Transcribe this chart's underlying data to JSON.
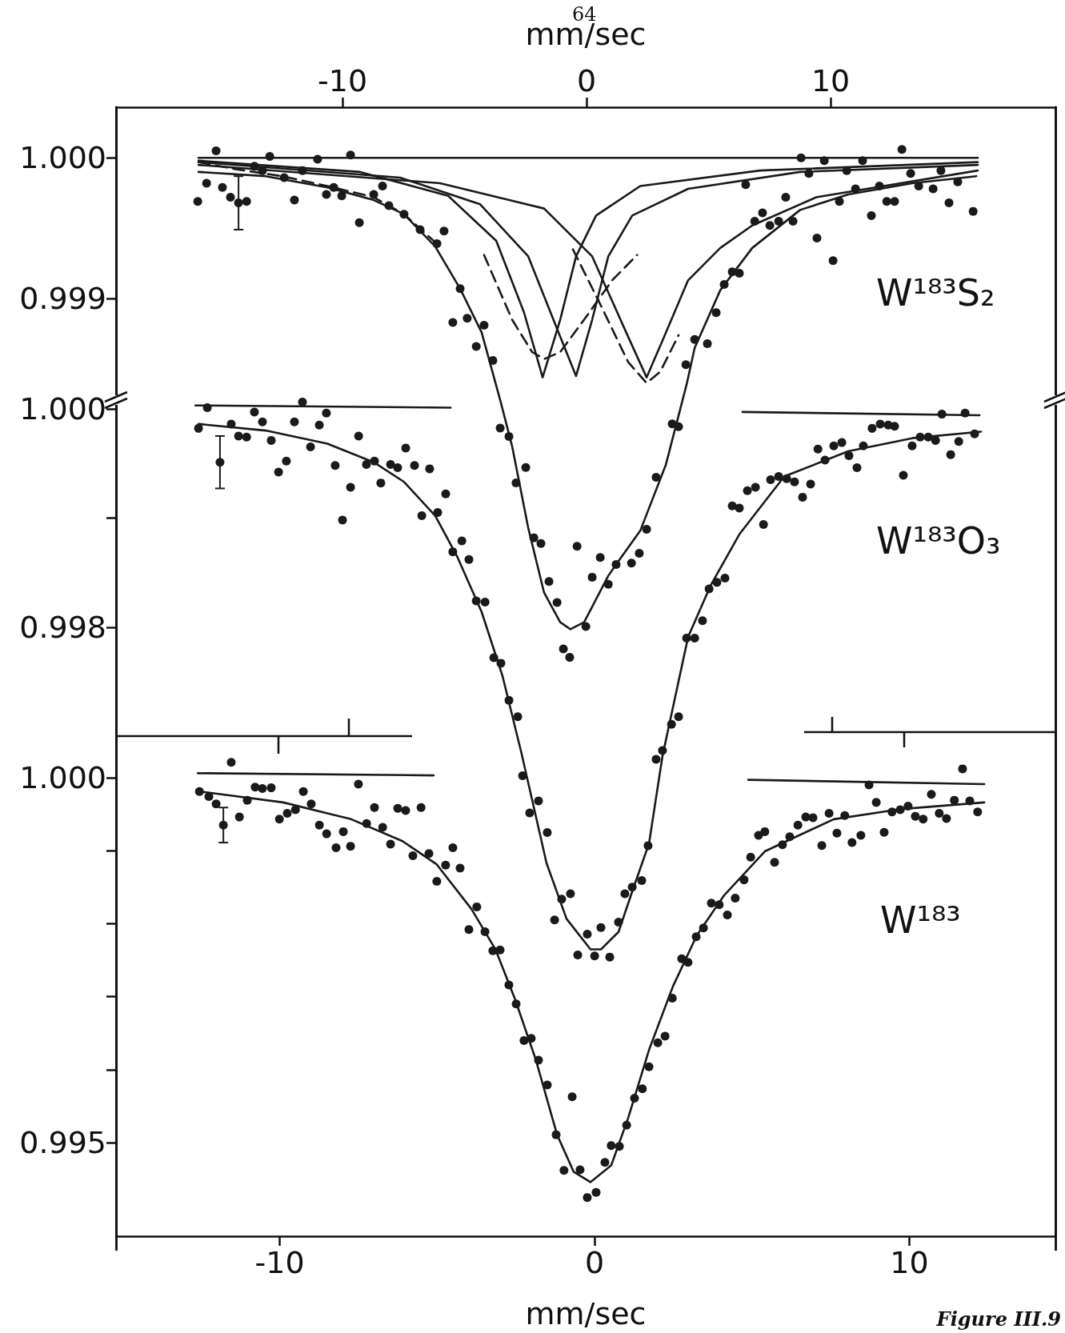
{
  "chart_data": [
    {
      "type": "scatter",
      "title": "W¹⁸³S₂",
      "xlabel": "mm/sec",
      "xlim": [
        -19.28,
        19.21
      ],
      "xticks": [
        -10,
        0,
        10
      ],
      "ylim": [
        0.99224,
        1.00036
      ],
      "yticks": [
        {
          "value": 1,
          "label": "1.000"
        },
        {
          "value": 0.999,
          "label": "0.999"
        }
      ],
      "grid": false,
      "annotations": [
        "64"
      ],
      "series": [
        {
          "type": "line",
          "line_style": "solid",
          "marker": "none",
          "color": "#1a1a1a",
          "x": [
            -15.9,
            16.03
          ],
          "values": [
            1.0,
            1.0
          ]
        },
        {
          "type": "line",
          "line_style": "solid",
          "marker": "none",
          "color": "#1a1a1a",
          "x": [
            -15.9,
            -9.28,
            -5.67,
            -3.7,
            -2.56,
            -1.8,
            -1.08,
            -0.43,
            0.39,
            2.2,
            7.11,
            16.03
          ],
          "values": [
            0.99998,
            0.9999,
            0.99973,
            0.99941,
            0.9989,
            0.99844,
            0.99885,
            0.9993,
            0.99959,
            0.9998,
            0.99991,
            0.99997
          ]
        },
        {
          "type": "line",
          "line_style": "solid",
          "marker": "none",
          "color": "#1a1a1a",
          "x": [
            -15.9,
            -7.64,
            -4.36,
            -2.39,
            -1.08,
            -0.43,
            0.23,
            0.89,
            1.87,
            4.16,
            8.75,
            16.03
          ],
          "values": [
            0.99997,
            0.99986,
            0.99967,
            0.9993,
            0.99873,
            0.99845,
            0.99885,
            0.9993,
            0.99959,
            0.99978,
            0.9999,
            0.99995
          ]
        },
        {
          "type": "line",
          "line_style": "solid",
          "marker": "none",
          "color": "#1a1a1a",
          "x": [
            -15.9,
            -6.0,
            -1.74,
            0.23,
            1.7,
            2.46,
            3.18,
            4.16,
            5.48,
            6.79,
            9.41,
            16.03
          ],
          "values": [
            0.99995,
            0.99982,
            0.99964,
            0.9993,
            0.99873,
            0.99844,
            0.99873,
            0.99913,
            0.99936,
            0.99952,
            0.99972,
            0.99991
          ]
        },
        {
          "type": "line",
          "line_style": "dashed",
          "marker": "none",
          "color": "#1a1a1a",
          "x": [
            -4.2,
            -3.05,
            -2.23,
            -1.74,
            -1.08,
            -0.1,
            1.05,
            2.07
          ],
          "values": [
            0.99931,
            0.99885,
            0.99862,
            0.99857,
            0.99862,
            0.99885,
            0.99913,
            0.99931
          ]
        },
        {
          "type": "line",
          "line_style": "dashed",
          "marker": "none",
          "color": "#1a1a1a",
          "x": [
            -0.56,
            0.56,
            1.7,
            2.46,
            3.02,
            3.77
          ],
          "values": [
            0.99935,
            0.99896,
            0.99855,
            0.9984,
            0.99848,
            0.99874
          ]
        },
        {
          "type": "line",
          "line_style": "dashed",
          "marker": "none",
          "color": "#1a1a1a",
          "x": [
            -15.9,
            -14.39,
            -12.49,
            -10.62,
            -8.72,
            -7.48,
            -6.2
          ],
          "values": [
            0.99997,
            0.99992,
            0.99987,
            0.9998,
            0.99972,
            0.9996,
            0.9994
          ]
        },
        {
          "type": "line",
          "line_style": "solid",
          "marker": "none",
          "color": "#1a1a1a",
          "x": [
            -15.9,
            -13.15,
            -10.62,
            -8.72,
            -7.48,
            -6.2,
            -5.18,
            -4.3,
            -3.54,
            -3.05,
            -2.39,
            -1.74,
            -1.08,
            -0.66,
            -0.1,
            0.89,
            1.21,
            2.2,
            3.25,
            4.1,
            4.43,
            5.48,
            6.79,
            8.75,
            10.72,
            13.34,
            15.97
          ],
          "values": [
            0.9999,
            0.99987,
            0.99979,
            0.9997,
            0.9996,
            0.99937,
            0.99907,
            0.99876,
            0.99828,
            0.99795,
            0.99737,
            0.99691,
            0.9967,
            0.99665,
            0.9967,
            0.99703,
            0.99711,
            0.99735,
            0.99782,
            0.99839,
            0.99865,
            0.99906,
            0.99936,
            0.99963,
            0.99974,
            0.99982,
            0.99987
          ]
        },
        {
          "marker": "circle",
          "color": "#1a1a1a",
          "x": [
            -14.26
          ],
          "values": [
            0.99968
          ],
          "errors": [
            0.00019
          ]
        },
        {
          "marker": "circle",
          "color": "#1a1a1a",
          "x": [
            -15.93,
            -15.57,
            -15.18,
            -14.92,
            -14.59,
            -13.93,
            -13.61,
            -13.28,
            -12.98,
            -12.39,
            -11.97,
            -11.64,
            -11.02,
            -10.66,
            -10.36,
            -10.03,
            -9.67,
            -9.31,
            -8.72,
            -8.36,
            -8.1,
            -7.48,
            -6.82,
            -6.13,
            -5.84,
            -5.48,
            -5.18,
            -4.89,
            -4.52,
            -4.2,
            -3.84,
            -3.54,
            -3.18,
            -2.89,
            -2.49,
            -2.16,
            -1.87,
            -1.54,
            -1.21,
            -0.95,
            -0.69,
            -0.39,
            -0.03,
            0.23,
            0.56,
            0.89,
            1.21,
            1.84,
            2.16,
            2.46,
            2.85,
            3.51,
            3.77,
            4.07,
            4.43,
            4.95,
            5.31,
            5.64,
            5.97,
            6.26,
            6.52,
            6.89,
            7.21,
            7.51,
            7.87,
            8.16,
            8.46,
            8.79,
            9.11,
            9.44,
            9.74,
            10.1,
            10.36,
            10.66,
            11.02,
            11.31,
            11.67,
            12.0,
            12.3,
            12.62,
            12.92,
            13.28,
            13.61,
            14.2,
            14.52,
            14.85,
            15.21,
            15.84
          ],
          "values": [
            0.99969,
            0.99982,
            1.00005,
            0.99979,
            0.99972,
            0.99969,
            0.99994,
            0.99991,
            1.00001,
            0.99986,
            0.9997,
            0.99991,
            0.99999,
            0.99974,
            0.99979,
            0.99973,
            1.00002,
            0.99954,
            0.99974,
            0.9998,
            0.99966,
            0.9996,
            0.99949,
            0.99939,
            0.99948,
            0.99883,
            0.99907,
            0.99886,
            0.99866,
            0.99881,
            0.99856,
            0.99808,
            0.99802,
            0.99769,
            0.9978,
            0.9973,
            0.99726,
            0.99699,
            0.99684,
            0.99651,
            0.99645,
            0.99724,
            0.99667,
            0.99702,
            0.99716,
            0.99697,
            0.99711,
            0.99712,
            0.99719,
            0.99736,
            0.99773,
            0.99811,
            0.99809,
            0.99853,
            0.99871,
            0.99868,
            0.9989,
            0.9991,
            0.99919,
            0.99918,
            0.99981,
            0.99955,
            0.99961,
            0.99952,
            0.99955,
            0.99972,
            0.99955,
            1.0,
            0.99989,
            0.99943,
            0.99998,
            0.99927,
            0.99969,
            0.99991,
            0.99978,
            0.99998,
            0.99959,
            0.9998,
            0.99969,
            0.99969,
            1.00006,
            0.99989,
            0.9998,
            0.99978,
            0.99991,
            0.99968,
            0.99983,
            0.99962
          ]
        }
      ]
    },
    {
      "type": "scatter",
      "title": "W¹⁸³O₃",
      "xlim": [
        -19.28,
        19.21
      ],
      "xticks": [
        -10,
        0,
        10
      ],
      "ylim": [
        0.9923,
        1.00276
      ],
      "tick_labels": "y",
      "yticks": [
        {
          "value": 1,
          "label": "1.000"
        },
        {
          "value": 0.999,
          "label": null
        },
        {
          "value": 0.998,
          "label": "0.998"
        }
      ],
      "grid": false,
      "series": [
        {
          "type": "line",
          "line_style": "solid",
          "marker": "none",
          "color": "#1a1a1a",
          "x": [
            -16.03,
            -5.57
          ],
          "values": [
            1.00003,
            1.00001
          ]
        },
        {
          "type": "line",
          "line_style": "solid",
          "marker": "none",
          "color": "#1a1a1a",
          "x": [
            6.39,
            16.1
          ],
          "values": [
            0.99997,
            0.99994
          ]
        },
        {
          "type": "line",
          "line_style": "solid",
          "marker": "none",
          "color": "#1a1a1a",
          "x": [
            -15.9,
            -13.15,
            -10.62,
            -8.72,
            -7.48,
            -6.2,
            -5.31,
            -4.3,
            -3.44,
            -2.66,
            -1.64,
            -0.82,
            0.16,
            0.59,
            1.31,
            1.87,
            2.56,
            3.11,
            4.16,
            5.08,
            6.26,
            8.1,
            10.72,
            13.34,
            16.16
          ],
          "values": [
            0.99986,
            0.9998,
            0.99968,
            0.99951,
            0.99933,
            0.99902,
            0.99865,
            0.99814,
            0.99755,
            0.99684,
            0.99584,
            0.99533,
            0.99505,
            0.99505,
            0.99521,
            0.99558,
            0.99602,
            0.99682,
            0.99791,
            0.99838,
            0.99885,
            0.99938,
            0.99961,
            0.99973,
            0.99979
          ]
        },
        {
          "marker": "circle",
          "color": "#1a1a1a",
          "x": [
            -15.02
          ],
          "values": [
            0.99951
          ],
          "errors": [
            0.00024
          ]
        },
        {
          "marker": "circle",
          "color": "#1a1a1a",
          "x": [
            -15.9,
            -15.54,
            -14.56,
            -14.26,
            -13.93,
            -13.61,
            -13.28,
            -12.92,
            -12.62,
            -12.3,
            -11.97,
            -11.64,
            -11.31,
            -10.95,
            -10.66,
            -10.3,
            -10.0,
            -9.67,
            -9.34,
            -9.02,
            -8.69,
            -8.43,
            -8.03,
            -7.74,
            -7.41,
            -7.05,
            -6.75,
            -6.43,
            -6.1,
            -5.77,
            -5.48,
            -5.11,
            -4.82,
            -4.52,
            -4.16,
            -3.8,
            -3.51,
            -3.18,
            -2.82,
            -2.62,
            -2.33,
            -1.97,
            -1.61,
            -1.31,
            -1.02,
            -0.66,
            -0.36,
            0.03,
            0.33,
            0.59,
            0.95,
            1.31,
            1.57,
            1.87,
            2.26,
            2.52,
            2.85,
            3.11,
            3.48,
            3.77,
            4.1,
            4.43,
            4.75,
            5.02,
            5.34,
            5.67,
            5.97,
            6.26,
            6.59,
            6.92,
            7.25,
            7.54,
            7.87,
            8.2,
            8.52,
            8.85,
            9.18,
            9.48,
            9.77,
            10.13,
            10.46,
            10.75,
            11.08,
            11.34,
            11.7,
            12.03,
            12.36,
            12.62,
            12.98,
            13.34,
            13.67,
            14.0,
            14.3,
            14.56,
            14.92,
            15.25,
            15.51,
            15.9
          ],
          "values": [
            0.99982,
            1.00001,
            0.99986,
            0.99975,
            0.99974,
            0.99997,
            0.99988,
            0.99971,
            0.99942,
            0.99952,
            0.99988,
            1.00006,
            0.99965,
            0.99985,
            0.99996,
            0.99948,
            0.99898,
            0.99928,
            0.99975,
            0.99949,
            0.99952,
            0.99932,
            0.99949,
            0.99946,
            0.99964,
            0.99948,
            0.99902,
            0.99945,
            0.99905,
            0.99922,
            0.99869,
            0.99879,
            0.99862,
            0.99824,
            0.99823,
            0.99772,
            0.99767,
            0.99733,
            0.99718,
            0.99664,
            0.9963,
            0.99641,
            0.99612,
            0.99532,
            0.99551,
            0.99556,
            0.995,
            0.99519,
            0.99499,
            0.99525,
            0.99498,
            0.9953,
            0.99556,
            0.99562,
            0.99568,
            0.996,
            0.99679,
            0.99687,
            0.99711,
            0.99718,
            0.9979,
            0.9979,
            0.99806,
            0.99835,
            0.99841,
            0.99845,
            0.99911,
            0.99909,
            0.99925,
            0.99928,
            0.99894,
            0.99935,
            0.99938,
            0.99936,
            0.99933,
            0.99919,
            0.99931,
            0.99963,
            0.99953,
            0.99966,
            0.99969,
            0.99957,
            0.99946,
            0.99966,
            0.99982,
            0.99986,
            0.99985,
            0.99984,
            0.99939,
            0.99966,
            0.99974,
            0.99974,
            0.99971,
            0.99995,
            0.99958,
            0.9997,
            0.99996,
            0.99977
          ]
        }
      ]
    },
    {
      "type": "scatter",
      "title": "W¹⁸³",
      "xlabel": "mm/sec",
      "xlim": [
        -15.2,
        14.64
      ],
      "xticks": [
        -10,
        0,
        10
      ],
      "ylim": [
        0.99372,
        1.00918
      ],
      "yticks": [
        {
          "value": 1,
          "label": "1.000"
        },
        {
          "value": 0.999,
          "label": null
        },
        {
          "value": 0.998,
          "label": null
        },
        {
          "value": 0.997,
          "label": null
        },
        {
          "value": 0.996,
          "label": null
        },
        {
          "value": 0.995,
          "label": "0.995"
        }
      ],
      "grid": false,
      "annotations": [
        "Figure III.9"
      ],
      "series": [
        {
          "type": "line",
          "line_style": "solid",
          "marker": "none",
          "color": "#1a1a1a",
          "x": [
            -12.6,
            -5.11
          ],
          "values": [
            1.00006,
            1.00003
          ]
        },
        {
          "type": "line",
          "line_style": "solid",
          "marker": "none",
          "color": "#1a1a1a",
          "x": [
            4.88,
            12.38
          ],
          "values": [
            0.99997,
            0.99991
          ]
        },
        {
          "type": "line",
          "line_style": "solid",
          "marker": "none",
          "color": "#1a1a1a",
          "x": [
            -12.55,
            -9.89,
            -7.73,
            -6.1,
            -5.01,
            -3.91,
            -3.15,
            -2.52,
            -1.86,
            -1.19,
            -0.66,
            -0.13,
            0.53,
            1.07,
            1.73,
            2.49,
            3.25,
            4.12,
            5.41,
            7.6,
            9.76,
            12.38
          ],
          "values": [
            0.99981,
            0.99966,
            0.99943,
            0.99913,
            0.99881,
            0.9982,
            0.99765,
            0.99696,
            0.99613,
            0.99511,
            0.9946,
            0.99446,
            0.99469,
            0.99534,
            0.99627,
            0.99714,
            0.99784,
            0.99839,
            0.99899,
            0.99943,
            0.99957,
            0.99966
          ]
        },
        {
          "marker": "circle",
          "color": "#1a1a1a",
          "x": [
            -11.79
          ],
          "values": [
            0.99935
          ],
          "errors": [
            0.00024
          ]
        },
        {
          "marker": "circle",
          "color": "#1a1a1a",
          "x": [
            -12.55,
            -12.25,
            -12.02,
            -11.54,
            -11.28,
            -11.03,
            -10.78,
            -10.55,
            -10.27,
            -10.01,
            -9.76,
            -9.5,
            -9.25,
            -9.0,
            -8.74,
            -8.51,
            -8.21,
            -7.98,
            -7.75,
            -7.5,
            -7.24,
            -6.99,
            -6.73,
            -6.48,
            -6.25,
            -6.0,
            -5.77,
            -5.51,
            -5.26,
            -5.01,
            -4.73,
            -4.5,
            -4.27,
            -3.99,
            -3.74,
            -3.48,
            -3.23,
            -3.0,
            -2.72,
            -2.49,
            -2.24,
            -2.01,
            -1.78,
            -1.5,
            -1.22,
            -0.97,
            -0.71,
            -0.46,
            -0.23,
            0.05,
            0.33,
            0.53,
            0.79,
            1.02,
            1.27,
            1.52,
            1.73,
            2.01,
            2.24,
            2.47,
            2.77,
            2.97,
            3.23,
            3.46,
            3.71,
            3.96,
            4.22,
            4.47,
            4.75,
            4.96,
            5.21,
            5.41,
            5.72,
            5.97,
            6.2,
            6.46,
            6.71,
            6.94,
            7.22,
            7.45,
            7.7,
            7.95,
            8.18,
            8.46,
            8.72,
            8.95,
            9.2,
            9.45,
            9.71,
            9.96,
            10.19,
            10.44,
            10.7,
            10.95,
            11.18,
            11.43,
            11.69,
            11.92,
            12.17
          ],
          "values": [
            0.99981,
            0.99974,
            0.99964,
            1.00021,
            0.99946,
            0.99969,
            0.99987,
            0.99985,
            0.99986,
            0.99943,
            0.99951,
            0.99956,
            0.99981,
            0.99964,
            0.99935,
            0.99923,
            0.99904,
            0.99926,
            0.99906,
            0.99991,
            0.99937,
            0.99959,
            0.99932,
            0.99909,
            0.99958,
            0.99955,
            0.99893,
            0.99959,
            0.99896,
            0.99858,
            0.9988,
            0.99904,
            0.99876,
            0.99792,
            0.99823,
            0.99789,
            0.99763,
            0.99764,
            0.99716,
            0.9969,
            0.9964,
            0.99643,
            0.99613,
            0.99579,
            0.99511,
            0.99462,
            0.99563,
            0.99463,
            0.99425,
            0.99432,
            0.99473,
            0.99496,
            0.99495,
            0.99524,
            0.99561,
            0.99574,
            0.99604,
            0.99637,
            0.99646,
            0.99698,
            0.99752,
            0.99747,
            0.99782,
            0.99794,
            0.99828,
            0.99826,
            0.99812,
            0.99835,
            0.9986,
            0.99891,
            0.99921,
            0.99926,
            0.99884,
            0.99908,
            0.99919,
            0.99935,
            0.99946,
            0.99945,
            0.99907,
            0.99951,
            0.99924,
            0.99948,
            0.99911,
            0.99921,
            0.9999,
            0.99966,
            0.99925,
            0.99953,
            0.99956,
            0.99961,
            0.99947,
            0.99943,
            0.99977,
            0.99951,
            0.99944,
            0.99969,
            1.00012,
            0.99968,
            0.99953
          ]
        }
      ]
    }
  ]
}
